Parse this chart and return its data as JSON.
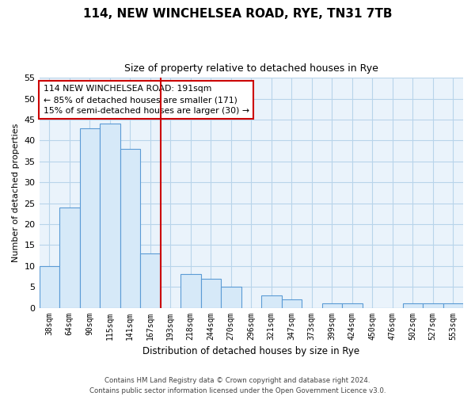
{
  "title": "114, NEW WINCHELSEA ROAD, RYE, TN31 7TB",
  "subtitle": "Size of property relative to detached houses in Rye",
  "xlabel": "Distribution of detached houses by size in Rye",
  "ylabel": "Number of detached properties",
  "bin_labels": [
    "38sqm",
    "64sqm",
    "90sqm",
    "115sqm",
    "141sqm",
    "167sqm",
    "193sqm",
    "218sqm",
    "244sqm",
    "270sqm",
    "296sqm",
    "321sqm",
    "347sqm",
    "373sqm",
    "399sqm",
    "424sqm",
    "450sqm",
    "476sqm",
    "502sqm",
    "527sqm",
    "553sqm"
  ],
  "bar_values": [
    10,
    24,
    43,
    44,
    38,
    13,
    0,
    8,
    7,
    5,
    0,
    3,
    2,
    0,
    1,
    1,
    0,
    0,
    1,
    1,
    1
  ],
  "bar_color": "#d6e9f8",
  "bar_edge_color": "#5b9bd5",
  "highlight_line_color": "#cc0000",
  "ylim": [
    0,
    55
  ],
  "yticks": [
    0,
    5,
    10,
    15,
    20,
    25,
    30,
    35,
    40,
    45,
    50,
    55
  ],
  "annotation_text": "114 NEW WINCHELSEA ROAD: 191sqm\n← 85% of detached houses are smaller (171)\n15% of semi-detached houses are larger (30) →",
  "annotation_box_color": "#ffffff",
  "annotation_box_edge": "#cc0000",
  "plot_bg_color": "#eaf3fb",
  "grid_color": "#b8d4ea",
  "footer_line1": "Contains HM Land Registry data © Crown copyright and database right 2024.",
  "footer_line2": "Contains public sector information licensed under the Open Government Licence v3.0."
}
